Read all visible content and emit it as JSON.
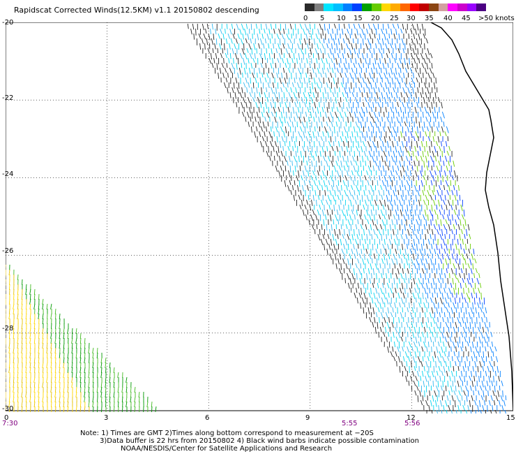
{
  "title": "Rapidscat Corrected Winds(12.5KM) v1.1 20150802 descending",
  "legend": {
    "colors": [
      "#2a2a2a",
      "#808080",
      "#00e5ff",
      "#00bfff",
      "#0080ff",
      "#0040ff",
      "#00a000",
      "#66cc00",
      "#ffd700",
      "#ffaa00",
      "#ff6600",
      "#ff0000",
      "#c00000",
      "#8b4513",
      "#d2a0a0",
      "#ff00ff",
      "#cc00cc",
      "#9900ff",
      "#4b0082"
    ],
    "labels": [
      "0",
      "5",
      "10",
      "15",
      "20",
      "25",
      "30",
      "35",
      "40",
      "45",
      ">50 knots"
    ]
  },
  "lat_labels": [
    "-20",
    "-22",
    "-24",
    "-26",
    "-28",
    "-30"
  ],
  "lon_labels": [
    "0",
    "3",
    "6",
    "9",
    "12",
    "15"
  ],
  "time_labels": [
    "7:30",
    "5:55",
    "5:56"
  ],
  "notes": [
    "Note: 1) Times are GMT 2)Times along bottom correspond to measurement at −20S",
    "3)Data buffer is 22 hrs from 20150802 4) Black wind barbs indicate possible contamination",
    "NOAA/NESDIS/Center for Satellite Applications and Research"
  ],
  "map": {
    "lat_range": [
      -30,
      -20
    ],
    "lon_range": [
      0,
      15
    ],
    "grid": true
  }
}
